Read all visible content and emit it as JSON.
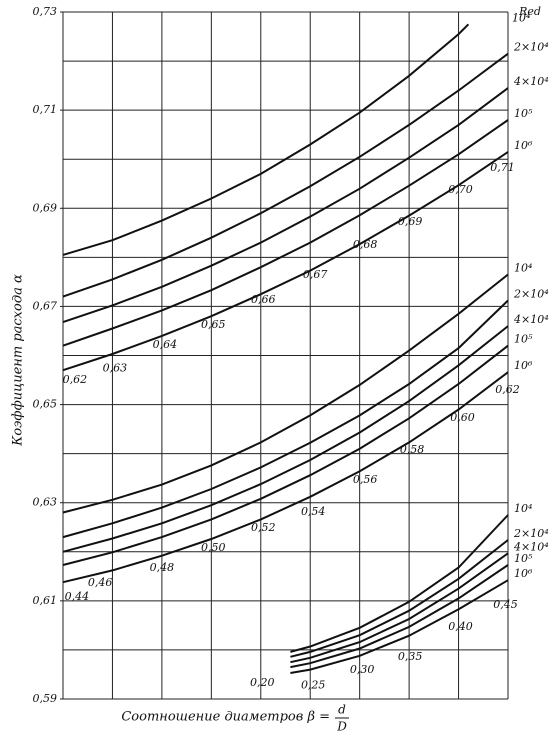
{
  "chart_data": {
    "type": "line",
    "color": "#111",
    "y_label": "Коэффициент расхода α",
    "x_label": "Соотношение диаметров β =",
    "x_label_numerator": "d",
    "x_label_denominator": "D",
    "legend_title": "Red",
    "xlim": [
      0,
      9
    ],
    "xticks": [
      0,
      1,
      2,
      3,
      4,
      5,
      6,
      7,
      8,
      9
    ],
    "ylim": [
      0.59,
      0.73
    ],
    "yticks": [
      {
        "value": 0.73,
        "label": "0,73"
      },
      {
        "value": 0.71,
        "label": "0,71"
      },
      {
        "value": 0.69,
        "label": "0,69"
      },
      {
        "value": 0.67,
        "label": "0,67"
      },
      {
        "value": 0.65,
        "label": "0,65"
      },
      {
        "value": 0.63,
        "label": "0,63"
      },
      {
        "value": 0.61,
        "label": "0,61"
      },
      {
        "value": 0.59,
        "label": "0,59"
      }
    ],
    "ygrid": [
      0.59,
      0.6,
      0.61,
      0.62,
      0.63,
      0.64,
      0.65,
      0.66,
      0.67,
      0.68,
      0.69,
      0.7,
      0.71,
      0.72,
      0.73
    ],
    "grid": true,
    "series": [
      {
        "name": "10⁴",
        "x": [
          0,
          1,
          2,
          3,
          4,
          5,
          6,
          7,
          8,
          8.2
        ],
        "values": [
          0.6805,
          0.6835,
          0.6875,
          0.692,
          0.697,
          0.703,
          0.7095,
          0.717,
          0.7255,
          0.7275
        ]
      },
      {
        "name": "2×10⁴",
        "x": [
          0,
          1,
          2,
          3,
          4,
          5,
          6,
          7,
          8,
          9
        ],
        "values": [
          0.672,
          0.6755,
          0.6795,
          0.684,
          0.689,
          0.6945,
          0.7005,
          0.707,
          0.714,
          0.7215
        ]
      },
      {
        "name": "4×10⁴",
        "x": [
          0,
          1,
          2,
          3,
          4,
          5,
          6,
          7,
          8,
          9
        ],
        "values": [
          0.6668,
          0.6702,
          0.674,
          0.6783,
          0.683,
          0.6883,
          0.694,
          0.7003,
          0.707,
          0.7145
        ]
      },
      {
        "name": "10⁵",
        "x": [
          0,
          1,
          2,
          3,
          4,
          5,
          6,
          7,
          8,
          9
        ],
        "values": [
          0.662,
          0.6655,
          0.6692,
          0.6733,
          0.678,
          0.683,
          0.6886,
          0.6946,
          0.701,
          0.708
        ]
      },
      {
        "name": "10⁶",
        "x": [
          0,
          1,
          2,
          3,
          4,
          5,
          6,
          7,
          8,
          9
        ],
        "values": [
          0.657,
          0.6603,
          0.664,
          0.668,
          0.6725,
          0.6773,
          0.6827,
          0.6885,
          0.6947,
          0.7015
        ]
      },
      {
        "name": "10⁴",
        "x": [
          0,
          1,
          2,
          3,
          4,
          5,
          6,
          7,
          8,
          9
        ],
        "values": [
          0.628,
          0.6306,
          0.6337,
          0.6376,
          0.6423,
          0.6478,
          0.654,
          0.661,
          0.6685,
          0.6765
        ]
      },
      {
        "name": "2×10⁴",
        "x": [
          0,
          1,
          2,
          3,
          4,
          5,
          6,
          7,
          8,
          9
        ],
        "values": [
          0.623,
          0.6258,
          0.629,
          0.6328,
          0.6372,
          0.6422,
          0.6478,
          0.6542,
          0.6615,
          0.6712
        ]
      },
      {
        "name": "4×10⁴",
        "x": [
          0,
          1,
          2,
          3,
          4,
          5,
          6,
          7,
          8,
          9
        ],
        "values": [
          0.62,
          0.6227,
          0.6258,
          0.6295,
          0.6338,
          0.6387,
          0.6443,
          0.6507,
          0.658,
          0.666
        ]
      },
      {
        "name": "10⁵",
        "x": [
          0,
          1,
          2,
          3,
          4,
          5,
          6,
          7,
          8,
          9
        ],
        "values": [
          0.6173,
          0.6199,
          0.623,
          0.6266,
          0.6308,
          0.6356,
          0.641,
          0.6472,
          0.6542,
          0.662
        ]
      },
      {
        "name": "10⁶",
        "x": [
          0,
          1,
          2,
          3,
          4,
          5,
          6,
          7,
          8,
          9
        ],
        "values": [
          0.6138,
          0.6162,
          0.6192,
          0.6226,
          0.6266,
          0.6312,
          0.6364,
          0.6423,
          0.649,
          0.6566
        ]
      },
      {
        "name": "10⁴",
        "x": [
          4.6,
          5,
          6,
          7,
          8,
          9
        ],
        "values": [
          0.5996,
          0.6007,
          0.6045,
          0.6098,
          0.6168,
          0.6275
        ]
      },
      {
        "name": "2×10⁴",
        "x": [
          4.6,
          5,
          6,
          7,
          8,
          9
        ],
        "values": [
          0.5986,
          0.5996,
          0.603,
          0.608,
          0.6145,
          0.6224
        ]
      },
      {
        "name": "4×10⁴",
        "x": [
          4.6,
          5,
          6,
          7,
          8,
          9
        ],
        "values": [
          0.5975,
          0.5984,
          0.6016,
          0.6063,
          0.6125,
          0.6197
        ]
      },
      {
        "name": "10⁵",
        "x": [
          4.6,
          5,
          6,
          7,
          8,
          9
        ],
        "values": [
          0.5965,
          0.5973,
          0.6003,
          0.6047,
          0.6105,
          0.6173
        ]
      },
      {
        "name": "10⁶",
        "x": [
          4.6,
          5,
          6,
          7,
          8,
          9
        ],
        "values": [
          0.5953,
          0.596,
          0.5988,
          0.6029,
          0.6083,
          0.6142
        ]
      }
    ],
    "annotations": [
      {
        "text": "0,62",
        "x": 0.24,
        "y": 0.655
      },
      {
        "text": "0,63",
        "x": 1.05,
        "y": 0.6574
      },
      {
        "text": "0,64",
        "x": 2.06,
        "y": 0.6621
      },
      {
        "text": "0,65",
        "x": 3.04,
        "y": 0.6662
      },
      {
        "text": "0,66",
        "x": 4.05,
        "y": 0.6713
      },
      {
        "text": "0,67",
        "x": 5.1,
        "y": 0.6764
      },
      {
        "text": "0,68",
        "x": 6.11,
        "y": 0.6825
      },
      {
        "text": "0,69",
        "x": 7.02,
        "y": 0.6872
      },
      {
        "text": "0,70",
        "x": 8.04,
        "y": 0.6937
      },
      {
        "text": "0,71",
        "x": 8.89,
        "y": 0.6982
      },
      {
        "text": "0,44",
        "x": 0.28,
        "y": 0.6108
      },
      {
        "text": "0,46",
        "x": 0.75,
        "y": 0.6136
      },
      {
        "text": "0,48",
        "x": 2.0,
        "y": 0.6167
      },
      {
        "text": "0,50",
        "x": 3.04,
        "y": 0.6208
      },
      {
        "text": "0,52",
        "x": 4.05,
        "y": 0.6248
      },
      {
        "text": "0,54",
        "x": 5.06,
        "y": 0.6281
      },
      {
        "text": "0,56",
        "x": 6.11,
        "y": 0.6346
      },
      {
        "text": "0,58",
        "x": 7.06,
        "y": 0.6407
      },
      {
        "text": "0,60",
        "x": 8.08,
        "y": 0.6473
      },
      {
        "text": "0,62",
        "x": 8.99,
        "y": 0.653
      },
      {
        "text": "0,20",
        "x": 4.03,
        "y": 0.5933
      },
      {
        "text": "0,25",
        "x": 5.06,
        "y": 0.5928
      },
      {
        "text": "0,30",
        "x": 6.05,
        "y": 0.5959
      },
      {
        "text": "0,35",
        "x": 7.02,
        "y": 0.5986
      },
      {
        "text": "0,40",
        "x": 8.04,
        "y": 0.6047
      },
      {
        "text": "0,45",
        "x": 8.95,
        "y": 0.6092
      }
    ]
  }
}
